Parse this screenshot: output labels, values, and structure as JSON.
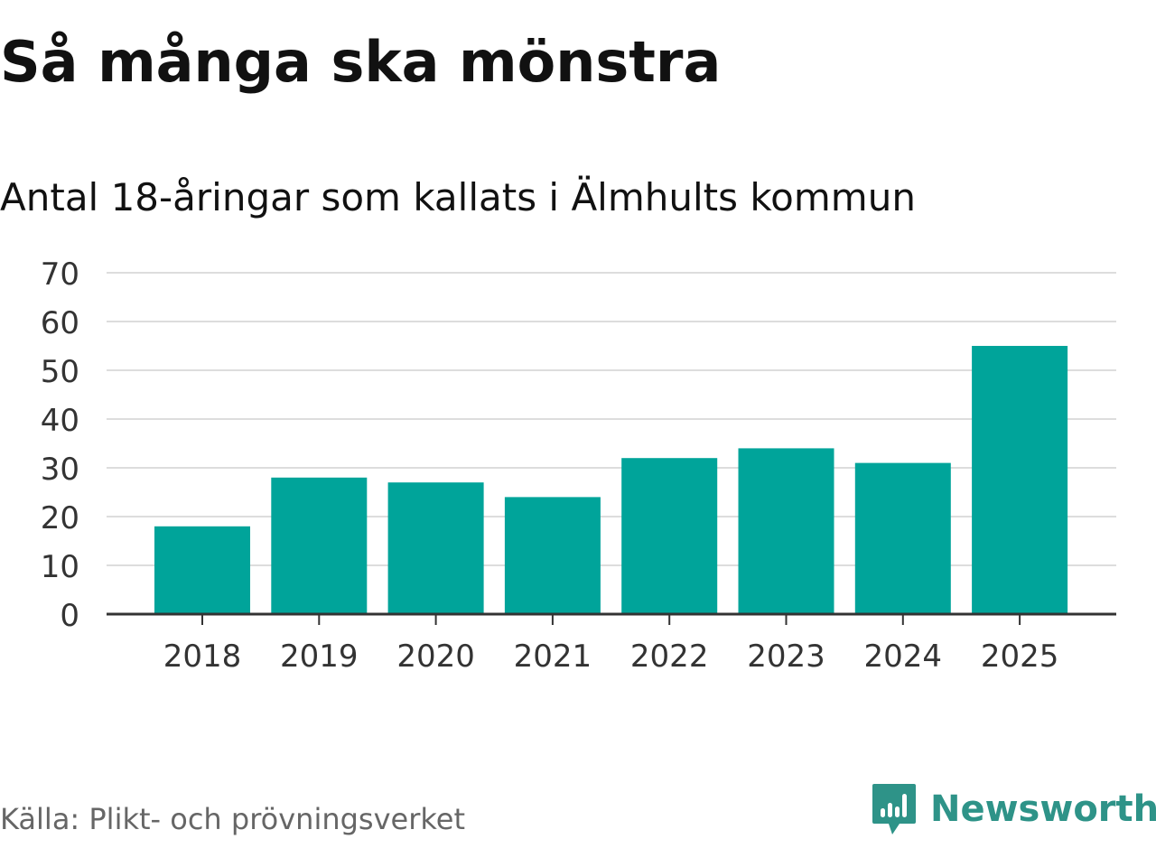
{
  "header": {
    "title": "Så många ska mönstra",
    "subtitle": "Antal 18-åringar som kallats i Älmhults kommun"
  },
  "footer": {
    "source": "Källa: Plikt- och prövningsverket",
    "brand": "Newsworthy",
    "brand_icon": "newsworthy-logo-icon"
  },
  "colors": {
    "bar": "#00a49a",
    "grid": "#dddddd",
    "axis": "#333333",
    "brand": "#2e9388"
  },
  "chart_data": {
    "type": "bar",
    "title": "Så många ska mönstra",
    "subtitle": "Antal 18-åringar som kallats i Älmhults kommun",
    "xlabel": "",
    "ylabel": "",
    "categories": [
      "2018",
      "2019",
      "2020",
      "2021",
      "2022",
      "2023",
      "2024",
      "2025"
    ],
    "values": [
      18,
      28,
      27,
      24,
      32,
      34,
      31,
      55
    ],
    "ylim": [
      0,
      70
    ],
    "yticks": [
      0,
      10,
      20,
      30,
      40,
      50,
      60,
      70
    ],
    "grid": true
  }
}
